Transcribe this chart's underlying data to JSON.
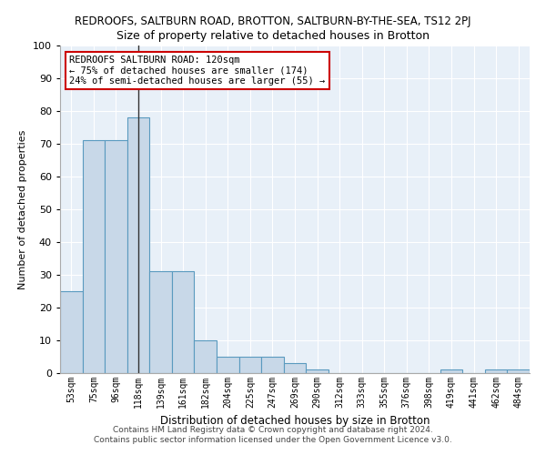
{
  "title": "REDROOFS, SALTBURN ROAD, BROTTON, SALTBURN-BY-THE-SEA, TS12 2PJ",
  "subtitle": "Size of property relative to detached houses in Brotton",
  "xlabel": "Distribution of detached houses by size in Brotton",
  "ylabel": "Number of detached properties",
  "categories": [
    "53sqm",
    "75sqm",
    "96sqm",
    "118sqm",
    "139sqm",
    "161sqm",
    "182sqm",
    "204sqm",
    "225sqm",
    "247sqm",
    "269sqm",
    "290sqm",
    "312sqm",
    "333sqm",
    "355sqm",
    "376sqm",
    "398sqm",
    "419sqm",
    "441sqm",
    "462sqm",
    "484sqm"
  ],
  "values": [
    25,
    71,
    71,
    78,
    31,
    31,
    10,
    5,
    5,
    5,
    3,
    1,
    0,
    0,
    0,
    0,
    0,
    1,
    0,
    1,
    1
  ],
  "bar_color": "#c8d8e8",
  "bar_edge_color": "#5a9abf",
  "background_color": "#e8f0f8",
  "ylim": [
    0,
    100
  ],
  "yticks": [
    0,
    10,
    20,
    30,
    40,
    50,
    60,
    70,
    80,
    90,
    100
  ],
  "property_line_x": 3,
  "annotation_line1": "REDROOFS SALTBURN ROAD: 120sqm",
  "annotation_line2": "← 75% of detached houses are smaller (174)",
  "annotation_line3": "24% of semi-detached houses are larger (55) →",
  "annotation_box_color": "#cc0000",
  "footer_line1": "Contains HM Land Registry data © Crown copyright and database right 2024.",
  "footer_line2": "Contains public sector information licensed under the Open Government Licence v3.0."
}
